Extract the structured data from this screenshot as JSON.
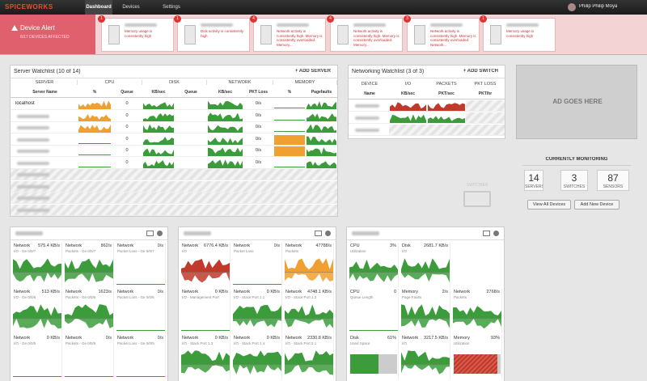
{
  "nav": {
    "logo": "SPICEWORKS",
    "tabs": [
      "Dashboard",
      "Devices",
      "Settings"
    ],
    "user": "Philip Philip Moya"
  },
  "alert": {
    "title": "Device Alert",
    "subtitle": "6/17 DEVICES AFFECTED",
    "cards": [
      {
        "count": 1,
        "message": "Memory usage is consistently high"
      },
      {
        "count": 1,
        "message": "Disk activity is consistently high"
      },
      {
        "count": 4,
        "message": "Network activity is consistently high. Memory is consistently overloaded. Memory..."
      },
      {
        "count": 4,
        "message": "Network activity is consistently high. Memory is consistently overloaded. Memory..."
      },
      {
        "count": 3,
        "message": "Network activity is consistently high. Memory is consistently overloaded. Network..."
      },
      {
        "count": 1,
        "message": "Memory usage is consistently high"
      }
    ]
  },
  "server_watchlist": {
    "title": "Server Watchlist (10 of 14)",
    "action": "+ ADD SERVER",
    "groups": [
      "SERVER",
      "CPU",
      "DISK",
      "NETWORK",
      "MEMORY"
    ],
    "columns": [
      "Server Name",
      "%",
      "Queue",
      "KB/sec",
      "Queue",
      "KB/sec",
      "PKT Loss",
      "%",
      "Pagefaults"
    ],
    "rows": [
      {
        "name": "localhost",
        "queue": "0",
        "pkt_loss": "0/s"
      },
      {
        "queue": "0",
        "pkt_loss": "0/s"
      },
      {
        "queue": "0",
        "pkt_loss": "0/s"
      },
      {
        "queue": "0",
        "pkt_loss": "0/s"
      },
      {
        "queue": "0",
        "pkt_loss": "0/s"
      },
      {
        "queue": "0",
        "pkt_loss": "0/s"
      }
    ]
  },
  "network_watchlist": {
    "title": "Networking Watchlist (3 of 3)",
    "action": "+ ADD SWITCH",
    "groups": [
      "DEVICE",
      "I/O",
      "PACKETS",
      "PKT LOSS"
    ],
    "columns": [
      "Name",
      "KB/sec",
      "PKT/sec",
      "PKT/hr"
    ]
  },
  "ad": "AD GOES HERE",
  "placeholder": "SWITCHES",
  "monitoring": {
    "title": "CURRENTLY MONITORING",
    "stats": [
      {
        "value": 14,
        "label": "SERVERS"
      },
      {
        "value": 3,
        "label": "SWITCHES"
      },
      {
        "value": 87,
        "label": "SENSORS"
      }
    ],
    "buttons": [
      "View All Devices",
      "Add New Device"
    ]
  },
  "device_panels": [
    {
      "rows": [
        [
          {
            "title": "Network",
            "value": "575.4 KB/s",
            "subtitle": "I/O - Ge 0/0/7",
            "color": "#3c9c3c"
          },
          {
            "title": "Network",
            "value": "862/s",
            "subtitle": "Packets - Ge 0/0/7",
            "color": "#3c9c3c"
          },
          {
            "title": "Network",
            "value": "0/s",
            "subtitle": "Packet Loss - Ge 0/0/7"
          }
        ],
        [
          {
            "title": "Network",
            "value": "513 KB/s",
            "subtitle": "I/O - Ge 0/0/6",
            "color": "#3c9c3c"
          },
          {
            "title": "Network",
            "value": "1623/s",
            "subtitle": "Packets - Ge 0/0/6",
            "color": "#3c9c3c"
          },
          {
            "title": "Network",
            "value": "0/s",
            "subtitle": "Packet Loss - Ge 0/0/6"
          }
        ],
        [
          {
            "title": "Network",
            "value": "0 KB/s",
            "subtitle": "I/O - Ge 0/0/5"
          },
          {
            "title": "Network",
            "value": "0/s",
            "subtitle": "Packets - Ge 0/0/5"
          },
          {
            "title": "Network",
            "value": "0/s",
            "subtitle": "Packet Loss - Ge 0/0/5"
          }
        ]
      ]
    },
    {
      "rows": [
        [
          {
            "title": "Network",
            "value": "6776.4 KB/s",
            "subtitle": "I/O",
            "color": "#c0392b"
          },
          {
            "title": "Network",
            "value": "0/s",
            "subtitle": "Packet Loss"
          },
          {
            "title": "Network",
            "value": "47788/s",
            "subtitle": "Packets",
            "color": "#f0a030"
          }
        ],
        [
          {
            "title": "Network",
            "value": "0 KB/s",
            "subtitle": "I/O - Management Port"
          },
          {
            "title": "Network",
            "value": "0 KB/s",
            "subtitle": "I/O - Stack Port 1.1",
            "color": "#3c9c3c"
          },
          {
            "title": "Network",
            "value": "4748.1 KB/s",
            "subtitle": "I/O - Stack Port 1.2",
            "color": "#3c9c3c"
          }
        ],
        [
          {
            "title": "Network",
            "value": "0 KB/s",
            "subtitle": "I/O - Stack Port 1.3",
            "color": "#3c9c3c"
          },
          {
            "title": "Network",
            "value": "0 KB/s",
            "subtitle": "I/O - Stack Port 1.4",
            "color": "#3c9c3c"
          },
          {
            "title": "Network",
            "value": "2330.8 KB/s",
            "subtitle": "I/O - Stack Port 2.1",
            "color": "#3c9c3c"
          }
        ]
      ]
    },
    {
      "rows": [
        [
          {
            "title": "CPU",
            "value": "3%",
            "subtitle": "Utilization",
            "color": "#3c9c3c"
          },
          {
            "title": "Disk",
            "value": "2681.7 KB/s",
            "subtitle": "I/O",
            "color": "#3c9c3c"
          }
        ],
        [
          {
            "title": "CPU",
            "value": "0",
            "subtitle": "Queue Length"
          },
          {
            "title": "Memory",
            "value": "2/s",
            "subtitle": "Page Faults",
            "color": "#3c9c3c"
          },
          {
            "title": "Network",
            "value": "2768/s",
            "subtitle": "Packets",
            "color": "#3c9c3c"
          }
        ],
        [
          {
            "title": "Disk",
            "value": "61%",
            "subtitle": "Used Space",
            "color": "#3c9c3c",
            "chart": "bar"
          },
          {
            "title": "Network",
            "value": "3217.5 KB/s",
            "subtitle": "I/O",
            "color": "#3c9c3c"
          },
          {
            "title": "Memory",
            "value": "93%",
            "subtitle": "Utilization",
            "color": "#c0392b",
            "chart": "bar"
          }
        ]
      ]
    }
  ]
}
